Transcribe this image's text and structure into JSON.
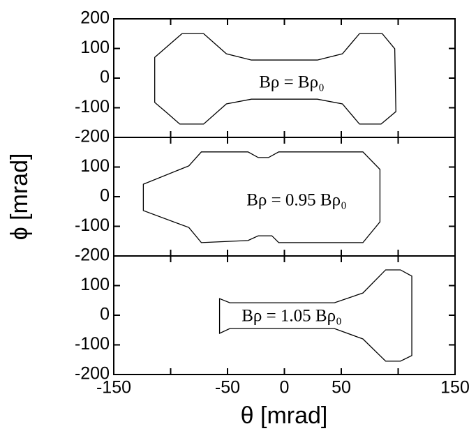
{
  "chart_data": [
    {
      "type": "line",
      "annotation": "Bρ = Bρ₀",
      "x": [
        -114,
        -90,
        -71,
        -51,
        -29,
        29,
        51,
        66,
        86,
        97,
        98,
        85,
        66,
        51,
        29,
        -29,
        -51,
        -71,
        -92,
        -103,
        -114
      ],
      "series": [
        {
          "color": "#000000",
          "values": [
            70,
            150,
            150,
            82,
            61,
            61,
            82,
            150,
            150,
            99,
            -113,
            -155,
            -155,
            -87,
            -71,
            -71,
            -87,
            -155,
            -155,
            -118,
            -82
          ]
        }
      ],
      "xlim": [
        -150,
        150
      ],
      "ylim": [
        -200,
        200
      ],
      "yticks": [
        -200,
        -100,
        0,
        100,
        200
      ]
    },
    {
      "type": "line",
      "annotation": "Bρ = 0.95 Bρ₀",
      "ylabel": "ϕ [mrad]",
      "x": [
        -124,
        -84,
        -73,
        -32,
        -23,
        -14,
        -5,
        69,
        84,
        84,
        69,
        -5,
        -11,
        -23,
        -32,
        -73,
        -84,
        -124
      ],
      "series": [
        {
          "color": "#000000",
          "values": [
            42,
            104,
            151,
            151,
            132,
            132,
            151,
            151,
            92,
            -85,
            -155,
            -155,
            -132,
            -132,
            -148,
            -155,
            -104,
            -47
          ]
        }
      ],
      "xlim": [
        -150,
        150
      ],
      "ylim": [
        -200,
        200
      ],
      "yticks": [
        -200,
        -100,
        0,
        100
      ]
    },
    {
      "type": "line",
      "annotation": "Bρ = 1.05 Bρ₀",
      "xlabel": "θ [mrad]",
      "x": [
        -57,
        -48,
        44,
        69,
        89,
        102,
        112,
        112,
        102,
        89,
        69,
        44,
        -48,
        -57
      ],
      "series": [
        {
          "color": "#000000",
          "values": [
            56,
            42,
            42,
            75,
            153,
            153,
            132,
            -136,
            -155,
            -155,
            -80,
            -45,
            -45,
            -61
          ]
        }
      ],
      "xlim": [
        -150,
        150
      ],
      "ylim": [
        -200,
        200
      ],
      "yticks": [
        -200,
        -100,
        0,
        100
      ],
      "xticks": [
        -150,
        -50,
        0,
        50,
        150
      ],
      "xticks_unlabeled": [
        -100,
        100
      ]
    }
  ]
}
